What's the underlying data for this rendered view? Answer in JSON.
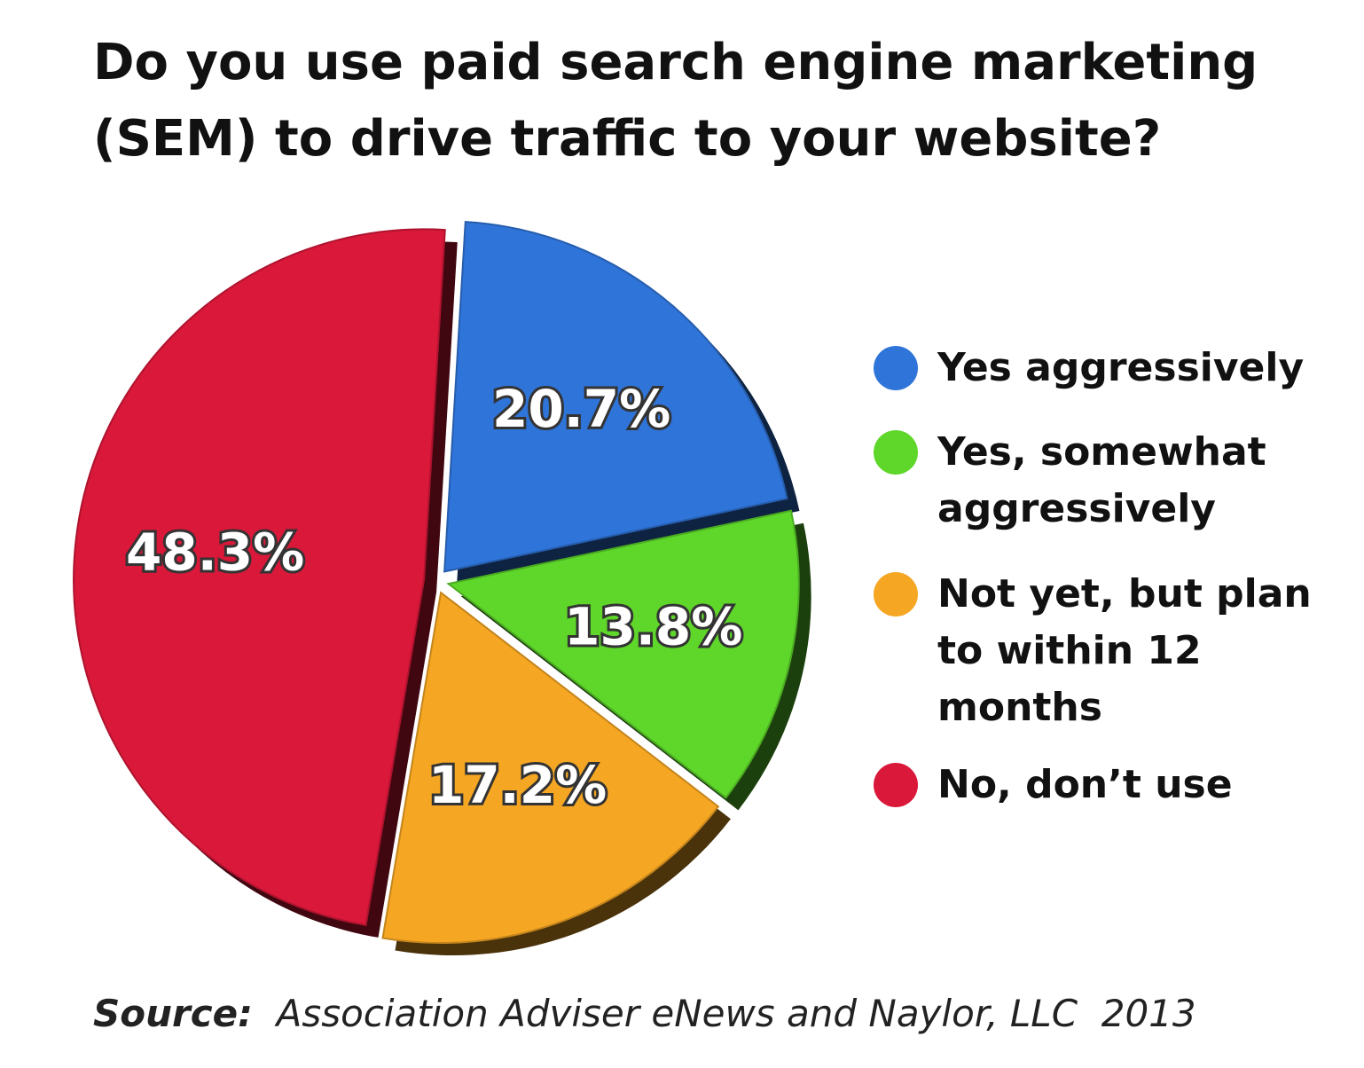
{
  "chart_data": {
    "type": "pie",
    "title": "Do you use paid search engine marketing (SEM) to drive traffic to your website?",
    "categories": [
      "Yes aggressively",
      "Yes, somewhat aggressively",
      "Not yet, but plan to within 12 months",
      "No, don’t use"
    ],
    "values": [
      20.7,
      13.8,
      17.2,
      48.3
    ],
    "value_labels": [
      "20.7%",
      "13.8%",
      "17.2%",
      "48.3%"
    ],
    "colors": [
      "#2f74d8",
      "#5ed62a",
      "#f5a623",
      "#d9183a"
    ],
    "source_label": "Source:",
    "source": "Association Adviser eNews and Naylor, LLC  2013",
    "legend": "right"
  }
}
